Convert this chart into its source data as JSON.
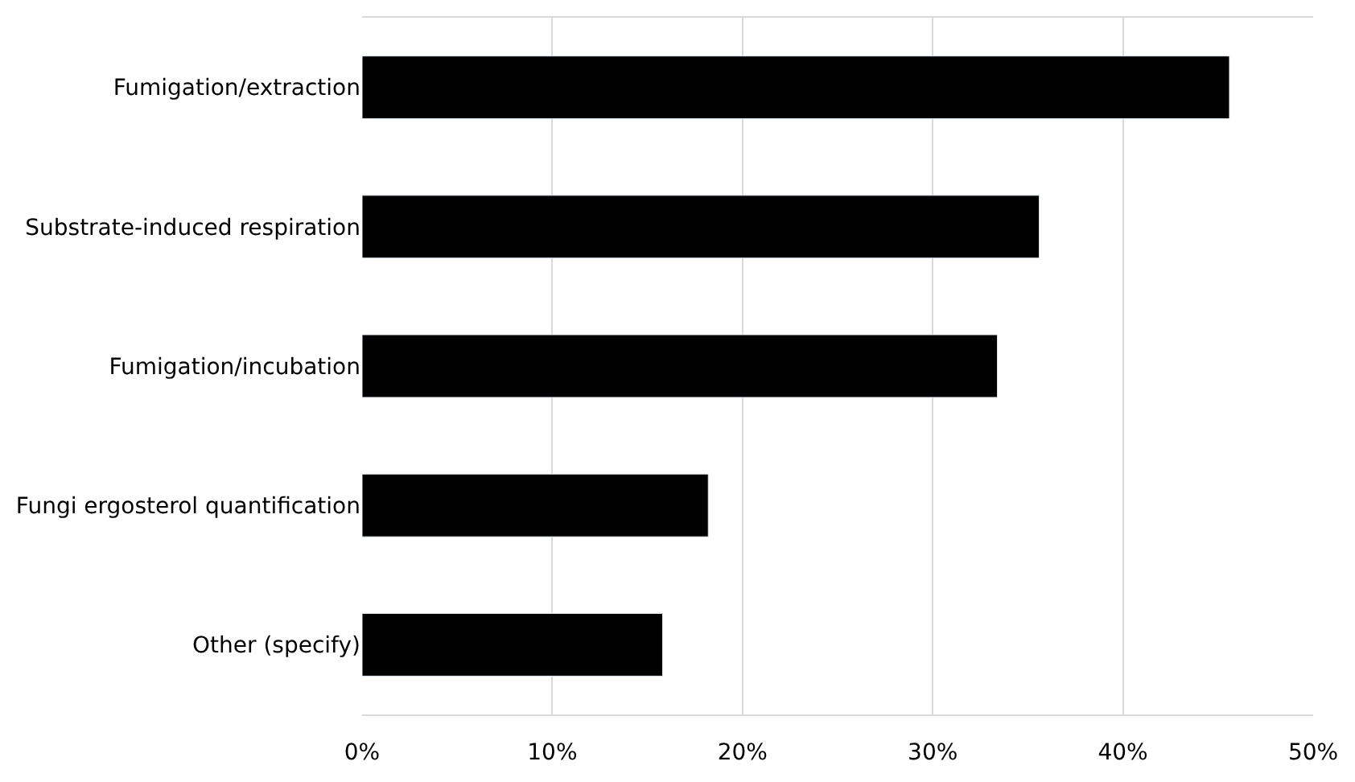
{
  "chart_data": {
    "type": "bar",
    "orientation": "horizontal",
    "categories": [
      "Fumigation/extraction",
      "Substrate-induced respiration",
      "Fumigation/incubation",
      "Fungi ergosterol quantification",
      "Other (specify)"
    ],
    "values": [
      45.6,
      35.6,
      33.4,
      18.2,
      15.8
    ],
    "color": "#000000",
    "xlim": [
      0,
      50
    ],
    "xticks": [
      {
        "value": 0,
        "label": "0%"
      },
      {
        "value": 10,
        "label": "10%"
      },
      {
        "value": 20,
        "label": "20%"
      },
      {
        "value": 30,
        "label": "30%"
      },
      {
        "value": 40,
        "label": "40%"
      },
      {
        "value": 50,
        "label": "50%"
      }
    ],
    "grid": "x"
  }
}
